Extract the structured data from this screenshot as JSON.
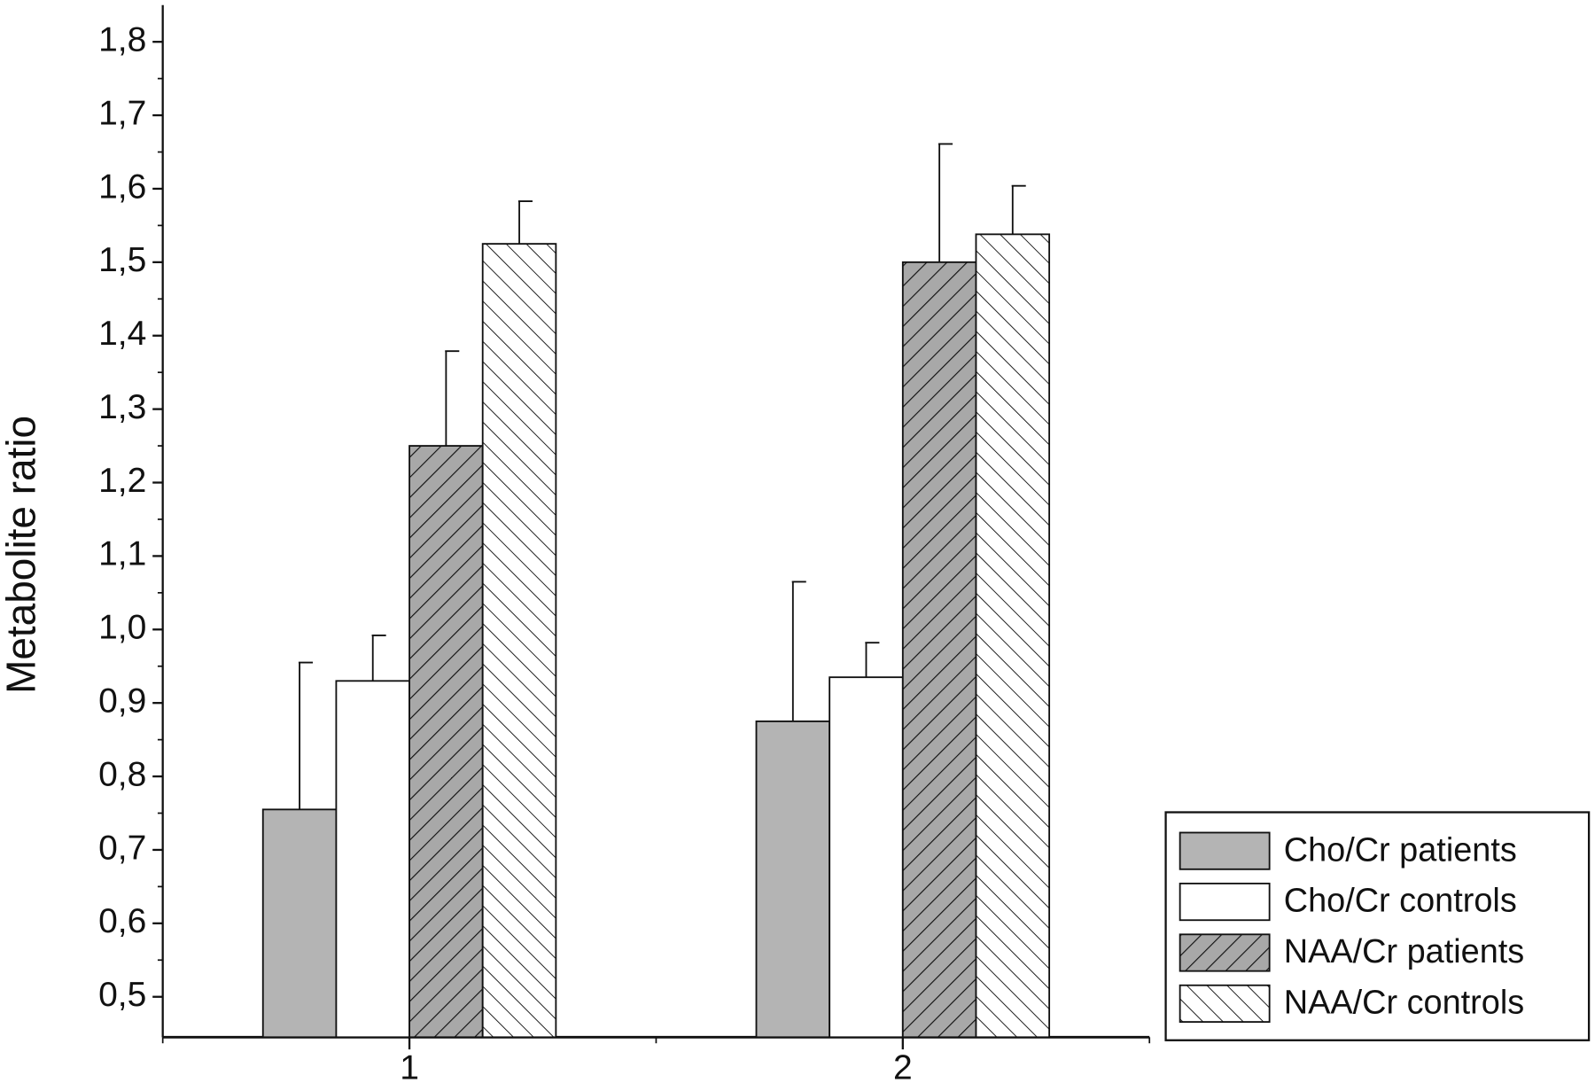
{
  "chart_data": {
    "type": "bar",
    "y_label": "Metabolite ratio",
    "categories": [
      "1",
      "2"
    ],
    "series": [
      {
        "name": "Cho/Cr patients",
        "color": "#b4b4b4",
        "values": [
          0.755,
          0.875
        ],
        "errors": [
          0.2,
          0.19
        ]
      },
      {
        "name": "Cho/Cr controls",
        "color": "#ffffff",
        "values": [
          0.93,
          0.935
        ],
        "errors": [
          0.062,
          0.047
        ]
      },
      {
        "name": "NAA/Cr patients",
        "color": "#a8a8a8",
        "hatch": "down",
        "values": [
          1.25,
          1.5
        ],
        "errors": [
          0.129,
          0.161
        ]
      },
      {
        "name": "NAA/Cr controls",
        "color": "#ffffff",
        "hatch": "up",
        "values": [
          1.525,
          1.538
        ],
        "errors": [
          0.058,
          0.066
        ]
      }
    ],
    "ylim": [
      0.445,
      1.85
    ],
    "yticks": [
      {
        "value": 0.5,
        "label": "0,5"
      },
      {
        "value": 0.6,
        "label": "0,6"
      },
      {
        "value": 0.7,
        "label": "0,7"
      },
      {
        "value": 0.8,
        "label": "0,8"
      },
      {
        "value": 0.9,
        "label": "0,9"
      },
      {
        "value": 1.0,
        "label": "1,0"
      },
      {
        "value": 1.1,
        "label": "1,1"
      },
      {
        "value": 1.2,
        "label": "1,2"
      },
      {
        "value": 1.3,
        "label": "1,3"
      },
      {
        "value": 1.4,
        "label": "1,4"
      },
      {
        "value": 1.5,
        "label": "1,5"
      },
      {
        "value": 1.6,
        "label": "1,6"
      },
      {
        "value": 1.7,
        "label": "1,7"
      },
      {
        "value": 1.8,
        "label": "1,8"
      }
    ],
    "legend": "lower right",
    "grid": false
  }
}
